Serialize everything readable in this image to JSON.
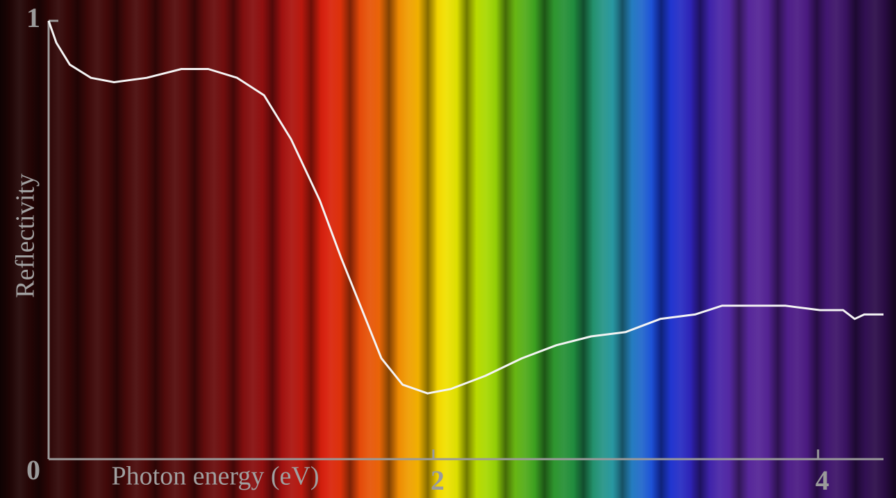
{
  "chart_data": {
    "type": "line",
    "xlabel": "Photon energy (eV)",
    "ylabel": "Reflectivity",
    "x": [
      0,
      0.04,
      0.11,
      0.22,
      0.34,
      0.51,
      0.69,
      0.83,
      0.98,
      1.12,
      1.26,
      1.41,
      1.52,
      1.63,
      1.73,
      1.84,
      1.97,
      2.09,
      2.27,
      2.46,
      2.64,
      2.82,
      3.0,
      3.18,
      3.36,
      3.5,
      3.65,
      3.83,
      4.01,
      4.13,
      4.19,
      4.24,
      4.3,
      4.34
    ],
    "series": [
      {
        "name": "Reflectivity",
        "color": "#f4f4f4",
        "values": [
          1.0,
          0.95,
          0.9,
          0.87,
          0.86,
          0.87,
          0.89,
          0.89,
          0.87,
          0.83,
          0.73,
          0.59,
          0.46,
          0.34,
          0.23,
          0.17,
          0.15,
          0.16,
          0.19,
          0.23,
          0.26,
          0.28,
          0.29,
          0.32,
          0.33,
          0.35,
          0.35,
          0.35,
          0.34,
          0.34,
          0.32,
          0.33,
          0.33,
          0.33
        ]
      }
    ],
    "xlim": [
      0,
      4.34
    ],
    "ylim": [
      0,
      1
    ],
    "xticks": [
      2,
      4
    ],
    "yticks": [
      0,
      1
    ],
    "axis_color": "#9a9a9a"
  }
}
